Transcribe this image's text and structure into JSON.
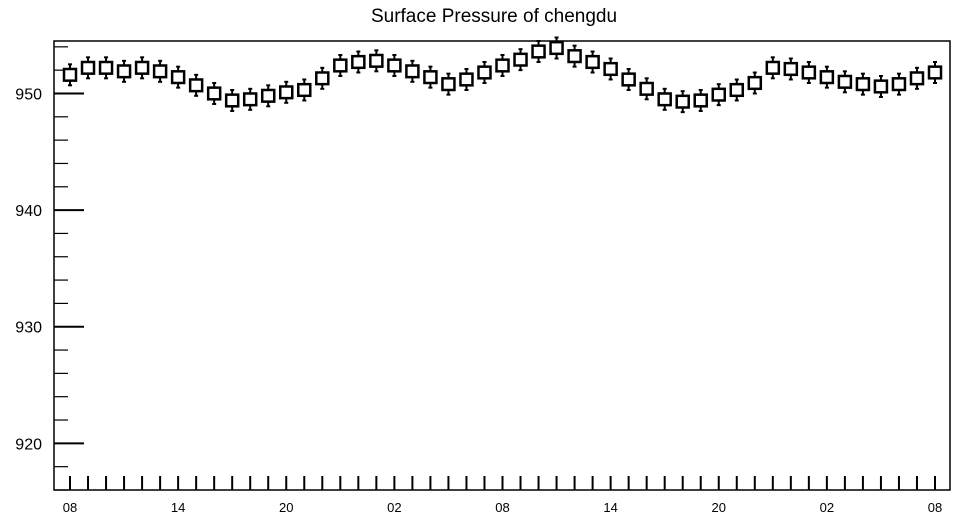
{
  "chart_data": {
    "type": "box",
    "title": "Surface Pressure of chengdu",
    "xlabel": "",
    "ylabel": "",
    "ylim": [
      916,
      954.5
    ],
    "y_ticks": [
      920,
      930,
      940,
      950
    ],
    "x_tick_labels": [
      "08",
      "14",
      "20",
      "02",
      "08",
      "14",
      "20",
      "02",
      "08"
    ],
    "grid": false,
    "legend": "none",
    "box_stats": {
      "medians": [
        951.6,
        952.2,
        952.2,
        951.9,
        952.2,
        951.9,
        951.4,
        950.7,
        950.0,
        949.4,
        949.5,
        949.8,
        950.1,
        950.3,
        951.3,
        952.4,
        952.7,
        952.8,
        952.4,
        951.9,
        951.4,
        950.8,
        951.2,
        951.8,
        952.4,
        952.9,
        953.6,
        953.9,
        953.2,
        952.7,
        952.1,
        951.2,
        950.4,
        949.5,
        949.3,
        949.4,
        949.9,
        950.3,
        950.9,
        952.2,
        952.1,
        951.8,
        951.4,
        951.0,
        950.8,
        950.6,
        950.8,
        951.3,
        951.8
      ],
      "box_half_range": 0.5,
      "whisker_extent": 0.9
    }
  }
}
